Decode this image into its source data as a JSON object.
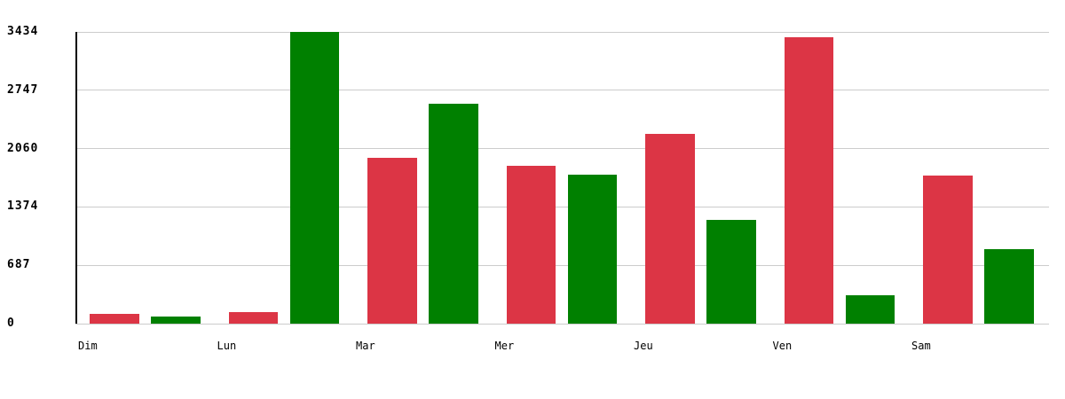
{
  "chart_data": {
    "type": "bar",
    "categories": [
      "Dim",
      "Lun",
      "Mar",
      "Mer",
      "Jeu",
      "Ven",
      "Sam"
    ],
    "series": [
      {
        "name": "red-series",
        "color": "#dc3545",
        "values": [
          110,
          135,
          1950,
          1860,
          2235,
          3370,
          1745
        ]
      },
      {
        "name": "green-series",
        "color": "#008000",
        "values": [
          85,
          3434,
          2590,
          1755,
          1220,
          335,
          875
        ]
      }
    ],
    "ylim": [
      0,
      3434
    ],
    "yticks": [
      0,
      687,
      1374,
      2060,
      2747,
      3434
    ],
    "grid": true,
    "legend": "none",
    "colors": {
      "axis": "#000000",
      "gridline": "#cccccc",
      "text": "#000000",
      "background": "#ffffff"
    }
  }
}
